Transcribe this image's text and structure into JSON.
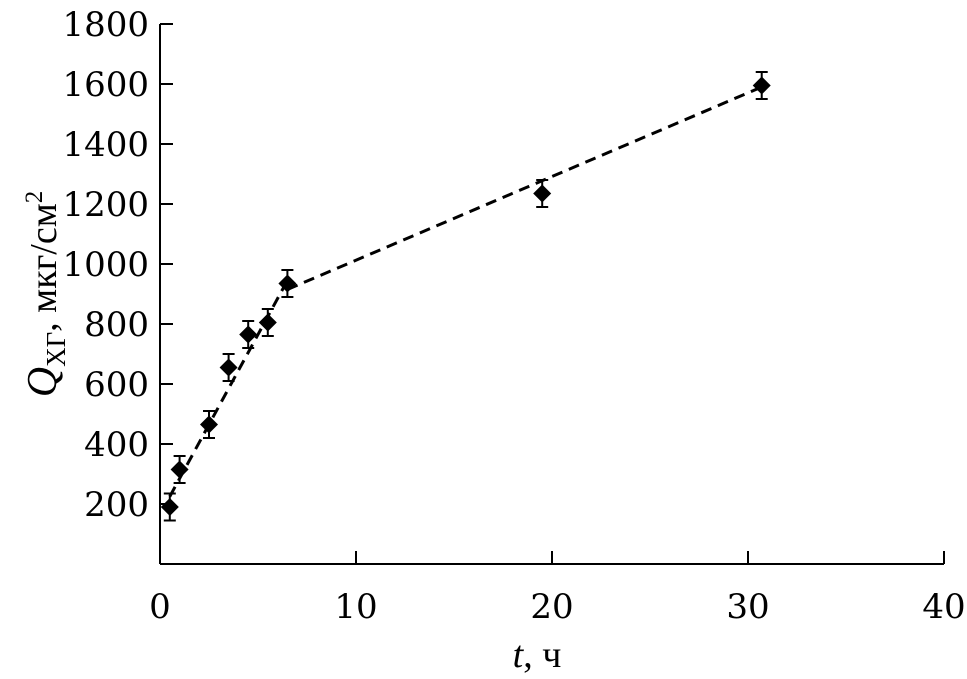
{
  "chart_data": {
    "type": "scatter",
    "x_axis": {
      "label_var": "t",
      "label_unit": ", ч",
      "range": [
        0,
        40
      ],
      "ticks": [
        0,
        10,
        20,
        30,
        40
      ],
      "tick_labels": [
        "0",
        "10",
        "20",
        "30",
        "40"
      ]
    },
    "y_axis": {
      "label_var": "Q",
      "label_sub": "ХГ",
      "label_unit": ", мкг/см",
      "label_sup": "2",
      "range": [
        0,
        1800
      ],
      "ticks": [
        200,
        400,
        600,
        800,
        1000,
        1200,
        1400,
        1600,
        1800
      ],
      "tick_labels": [
        "200",
        "400",
        "600",
        "800",
        "1000",
        "1200",
        "1400",
        "1600",
        "1800"
      ]
    },
    "series": [
      {
        "marker": "diamond",
        "color": "#000000",
        "points": [
          {
            "x": 0.5,
            "y": 190,
            "err": 45
          },
          {
            "x": 1.0,
            "y": 315,
            "err": 45
          },
          {
            "x": 2.5,
            "y": 465,
            "err": 45
          },
          {
            "x": 3.5,
            "y": 655,
            "err": 45
          },
          {
            "x": 4.5,
            "y": 765,
            "err": 45
          },
          {
            "x": 5.5,
            "y": 805,
            "err": 45
          },
          {
            "x": 6.5,
            "y": 935,
            "err": 45
          },
          {
            "x": 19.5,
            "y": 1235,
            "err": 45
          },
          {
            "x": 30.7,
            "y": 1595,
            "err": 45
          }
        ]
      }
    ],
    "fit_lines": [
      {
        "style": "dashed",
        "color": "#000000",
        "x": [
          0.5,
          6.5
        ],
        "y": [
          225,
          945
        ]
      },
      {
        "style": "dashed",
        "color": "#000000",
        "x": [
          6.5,
          30.7
        ],
        "y": [
          915,
          1590
        ]
      }
    ],
    "grid": false
  }
}
